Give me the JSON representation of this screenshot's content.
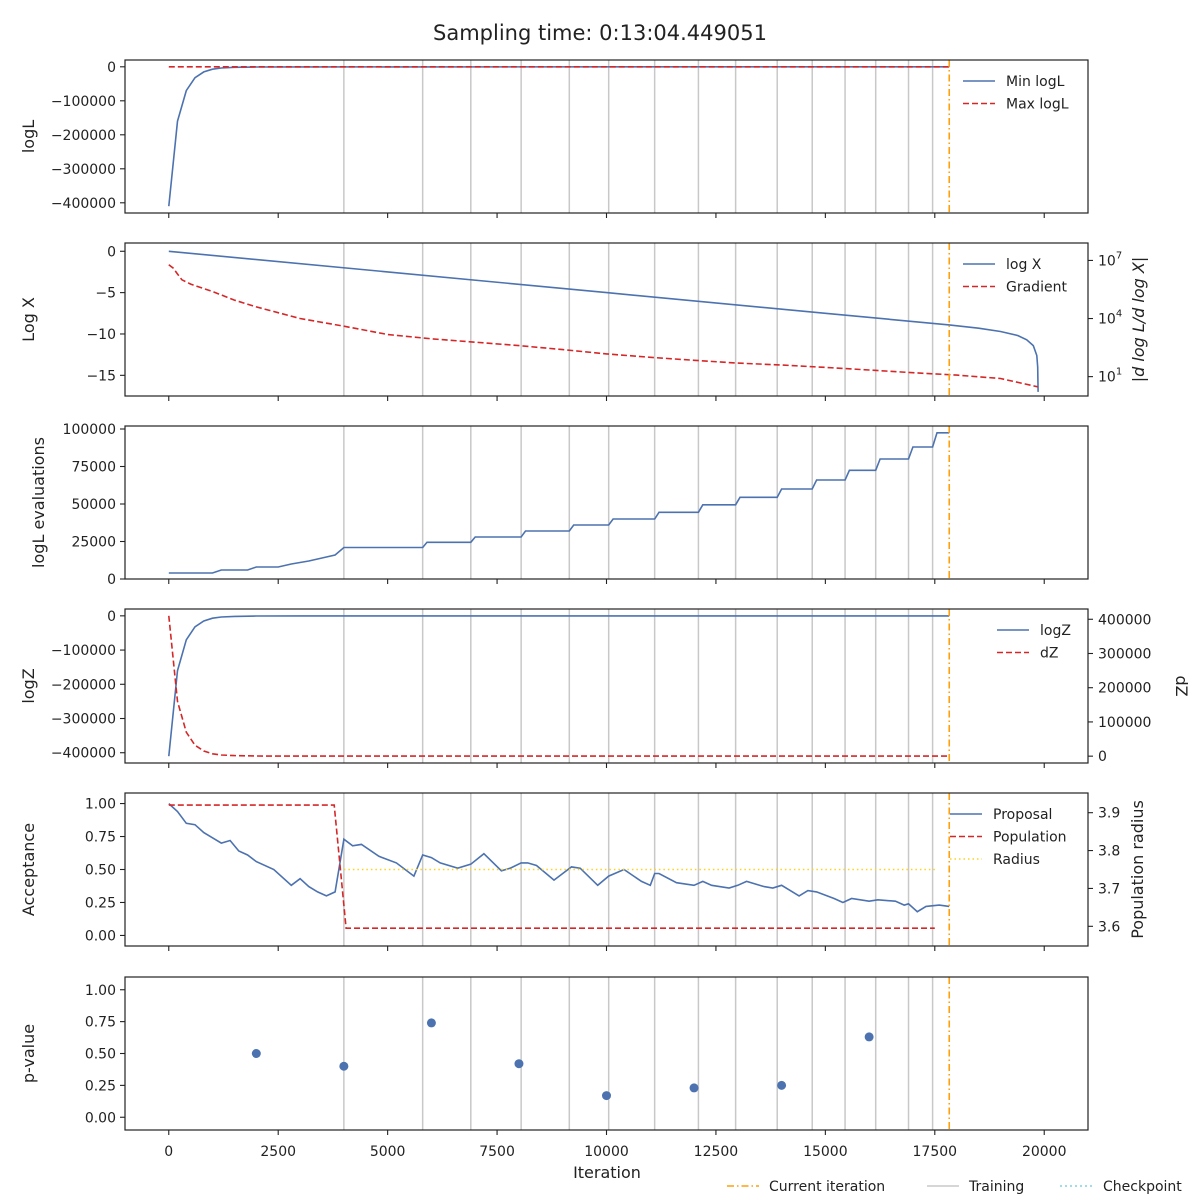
{
  "figure": {
    "title": "Sampling time: 0:13:04.449051",
    "xlabel": "Iteration",
    "x_ticks": [
      0,
      2500,
      5000,
      7500,
      10000,
      12500,
      15000,
      17500,
      20000
    ],
    "x_tick_labels": [
      "0",
      "2500",
      "5000",
      "7500",
      "10000",
      "12500",
      "15000",
      "17500",
      "20000"
    ],
    "xlim": [
      -1000,
      21000
    ],
    "colors": {
      "blue": "#4c72b0",
      "red": "#d62728",
      "orange": "#ff9f0a",
      "gold": "#ffd21f",
      "training": "#c8c8c8",
      "checkpoint": "#7fd3e3",
      "axis": "#222222"
    },
    "bottom_legend": [
      "Current iteration",
      "Training",
      "Checkpoint"
    ]
  },
  "chart_data": [
    {
      "type": "line",
      "ylabel": "logL",
      "ylim": [
        -430000,
        20000
      ],
      "y_ticks": [
        0,
        -100000,
        -200000,
        -300000,
        -400000
      ],
      "y_tick_labels": [
        "0",
        "−100000",
        "−200000",
        "−300000",
        "−400000"
      ],
      "current_iteration": 17830,
      "training_iterations": [
        4000,
        5800,
        6900,
        8050,
        9150,
        10050,
        11100,
        12100,
        12950,
        13900,
        14700,
        15450,
        16150,
        16900,
        17450
      ],
      "legend": [
        "Min logL",
        "Max logL"
      ],
      "series": [
        {
          "name": "Min logL",
          "style": "solid",
          "color": "#4c72b0",
          "x": [
            0,
            200,
            400,
            600,
            800,
            1000,
            1200,
            1500,
            2000,
            3000,
            17830
          ],
          "y": [
            -410000,
            -160000,
            -70000,
            -32000,
            -15000,
            -7000,
            -3500,
            -1500,
            -600,
            -200,
            -50
          ]
        },
        {
          "name": "Max logL",
          "style": "dashed",
          "color": "#d62728",
          "x": [
            0,
            17830
          ],
          "y": [
            0,
            0
          ]
        }
      ]
    },
    {
      "type": "line",
      "ylabel": "Log X",
      "y2label": "|d log L/d log X|",
      "ylim": [
        -17.5,
        1.0
      ],
      "y_ticks": [
        0,
        -5,
        -10,
        -15
      ],
      "y_tick_labels": [
        "0",
        "−5",
        "−10",
        "−15"
      ],
      "y2_scale": "log",
      "y2_ticks": [
        10,
        10000,
        10000000
      ],
      "y2_tick_labels": [
        "10",
        "10",
        "10"
      ],
      "y2_tick_exponents": [
        "1",
        "4",
        "7"
      ],
      "current_iteration": 17830,
      "training_iterations": [
        4000,
        5800,
        6900,
        8050,
        9150,
        10050,
        11100,
        12100,
        12950,
        13900,
        14700,
        15450,
        16150,
        16900,
        17450
      ],
      "legend": [
        "log X",
        "Gradient"
      ],
      "series": [
        {
          "name": "log X",
          "style": "solid",
          "color": "#4c72b0",
          "x": [
            0,
            5000,
            10000,
            15000,
            17830,
            18500,
            19000,
            19400,
            19600,
            19750,
            19830,
            19850,
            19860
          ],
          "y": [
            0,
            -2.5,
            -5.0,
            -7.5,
            -8.9,
            -9.3,
            -9.7,
            -10.2,
            -10.7,
            -11.4,
            -12.6,
            -14.0,
            -17.0
          ]
        },
        {
          "name": "Gradient",
          "style": "dashed",
          "color": "#d62728",
          "axis": "y2",
          "x": [
            0,
            100,
            200,
            300,
            500,
            800,
            1000,
            1500,
            2000,
            2500,
            3000,
            4000,
            5000,
            6000,
            7000,
            8000,
            9000,
            10000,
            11000,
            12000,
            13000,
            14000,
            15000,
            16000,
            17000,
            18000,
            19000,
            19850
          ],
          "y": [
            6000000,
            4000000,
            2000000,
            1000000,
            600000,
            350000,
            250000,
            90000,
            40000,
            20000,
            10000,
            4000,
            1500,
            900,
            600,
            400,
            250,
            150,
            100,
            70,
            50,
            40,
            30,
            22,
            16,
            12,
            8,
            3
          ]
        }
      ]
    },
    {
      "type": "line",
      "ylabel": "logL evaluations",
      "ylim": [
        0,
        102000
      ],
      "y_ticks": [
        0,
        25000,
        50000,
        75000,
        100000
      ],
      "y_tick_labels": [
        "0",
        "25000",
        "50000",
        "75000",
        "100000"
      ],
      "current_iteration": 17830,
      "training_iterations": [
        4000,
        5800,
        6900,
        8050,
        9150,
        10050,
        11100,
        12100,
        12950,
        13900,
        14700,
        15450,
        16150,
        16900,
        17450
      ],
      "series": [
        {
          "name": "",
          "style": "solid",
          "color": "#4c72b0",
          "x": [
            0,
            1000,
            1200,
            1800,
            2000,
            2500,
            2800,
            3200,
            3500,
            3800,
            4000,
            5800,
            5900,
            6900,
            7000,
            8050,
            8150,
            9150,
            9250,
            10050,
            10150,
            11100,
            11200,
            12100,
            12200,
            12950,
            13050,
            13900,
            14000,
            14700,
            14800,
            15450,
            15550,
            16150,
            16250,
            16900,
            17000,
            17450,
            17550,
            17830
          ],
          "y": [
            4000,
            4000,
            6000,
            6000,
            8000,
            8000,
            10000,
            12000,
            14000,
            16000,
            21000,
            21000,
            24500,
            24500,
            28000,
            28000,
            32000,
            32000,
            36000,
            36000,
            40000,
            40000,
            44500,
            44500,
            49500,
            49500,
            54500,
            54500,
            60000,
            60000,
            66000,
            66000,
            72500,
            72500,
            80000,
            80000,
            88000,
            88000,
            97500,
            97500
          ]
        }
      ]
    },
    {
      "type": "line",
      "ylabel": "logZ",
      "y2label": "dZ",
      "ylim": [
        -430000,
        20000
      ],
      "y_ticks": [
        0,
        -100000,
        -200000,
        -300000,
        -400000
      ],
      "y_tick_labels": [
        "0",
        "−100000",
        "−200000",
        "−300000",
        "−400000"
      ],
      "y2lim": [
        -20000,
        430000
      ],
      "y2_ticks": [
        0,
        100000,
        200000,
        300000,
        400000
      ],
      "y2_tick_labels": [
        "0",
        "100000",
        "200000",
        "300000",
        "400000"
      ],
      "current_iteration": 17830,
      "training_iterations": [
        4000,
        5800,
        6900,
        8050,
        9150,
        10050,
        11100,
        12100,
        12950,
        13900,
        14700,
        15450,
        16150,
        16900,
        17450
      ],
      "legend": [
        "logZ",
        "dZ"
      ],
      "series": [
        {
          "name": "logZ",
          "style": "solid",
          "color": "#4c72b0",
          "x": [
            0,
            200,
            400,
            600,
            800,
            1000,
            1200,
            1500,
            2000,
            3000,
            17830
          ],
          "y": [
            -410000,
            -160000,
            -70000,
            -32000,
            -15000,
            -7000,
            -3500,
            -1500,
            -600,
            -200,
            -50
          ]
        },
        {
          "name": "dZ",
          "style": "dashed",
          "color": "#d62728",
          "axis": "y2",
          "x": [
            0,
            200,
            400,
            600,
            800,
            1000,
            1200,
            1500,
            2000,
            3000,
            17830
          ],
          "y": [
            410000,
            160000,
            70000,
            32000,
            15000,
            7000,
            3500,
            1500,
            600,
            200,
            50
          ]
        }
      ]
    },
    {
      "type": "line",
      "ylabel": "Acceptance",
      "y2label": "Population radius",
      "ylim": [
        -0.08,
        1.08
      ],
      "y_ticks": [
        0.0,
        0.25,
        0.5,
        0.75,
        1.0
      ],
      "y_tick_labels": [
        "0.00",
        "0.25",
        "0.50",
        "0.75",
        "1.00"
      ],
      "y2lim": [
        3.548,
        3.952
      ],
      "y2_ticks": [
        3.6,
        3.7,
        3.8,
        3.9
      ],
      "y2_tick_labels": [
        "3.6",
        "3.7",
        "3.8",
        "3.9"
      ],
      "current_iteration": 17830,
      "training_iterations": [
        4000,
        5800,
        6900,
        8050,
        9150,
        10050,
        11100,
        12100,
        12950,
        13900,
        14700,
        15450,
        16150,
        16900,
        17450
      ],
      "legend": [
        "Proposal",
        "Population",
        "Radius"
      ],
      "series": [
        {
          "name": "Proposal",
          "style": "solid",
          "color": "#4c72b0",
          "x": [
            0,
            200,
            400,
            600,
            800,
            1000,
            1200,
            1400,
            1600,
            1800,
            2000,
            2400,
            2800,
            3000,
            3200,
            3400,
            3600,
            3800,
            4000,
            4200,
            4400,
            4800,
            5200,
            5600,
            5800,
            6000,
            6200,
            6600,
            6900,
            7200,
            7600,
            7800,
            8050,
            8200,
            8400,
            8800,
            9200,
            9400,
            9800,
            10050,
            10400,
            10800,
            11000,
            11100,
            11200,
            11600,
            12000,
            12200,
            12400,
            12800,
            13000,
            13200,
            13600,
            13800,
            14000,
            14400,
            14600,
            14800,
            15200,
            15400,
            15600,
            16000,
            16200,
            16600,
            16800,
            16900,
            17100,
            17300,
            17600,
            17830
          ],
          "y": [
            1.0,
            0.94,
            0.85,
            0.84,
            0.78,
            0.74,
            0.7,
            0.72,
            0.64,
            0.61,
            0.56,
            0.5,
            0.38,
            0.43,
            0.37,
            0.33,
            0.3,
            0.33,
            0.73,
            0.68,
            0.69,
            0.6,
            0.55,
            0.45,
            0.61,
            0.59,
            0.55,
            0.51,
            0.54,
            0.62,
            0.49,
            0.51,
            0.55,
            0.55,
            0.53,
            0.42,
            0.52,
            0.51,
            0.38,
            0.45,
            0.5,
            0.41,
            0.38,
            0.47,
            0.47,
            0.4,
            0.38,
            0.41,
            0.38,
            0.36,
            0.38,
            0.41,
            0.37,
            0.36,
            0.38,
            0.3,
            0.34,
            0.33,
            0.28,
            0.25,
            0.28,
            0.26,
            0.27,
            0.26,
            0.23,
            0.24,
            0.18,
            0.22,
            0.23,
            0.22
          ]
        },
        {
          "name": "Population",
          "style": "dashed",
          "color": "#d62728",
          "axis": "y2",
          "x": [
            0,
            3780,
            4050,
            17500
          ],
          "y": [
            3.92,
            3.92,
            3.595,
            3.595
          ]
        },
        {
          "name": "Radius",
          "style": "dotted",
          "color": "#ffd21f",
          "x": [
            4000,
            17500
          ],
          "y": [
            0.5,
            0.5
          ]
        }
      ]
    },
    {
      "type": "scatter",
      "ylabel": "p-value",
      "ylim": [
        -0.1,
        1.1
      ],
      "y_ticks": [
        0.0,
        0.25,
        0.5,
        0.75,
        1.0
      ],
      "y_tick_labels": [
        "0.00",
        "0.25",
        "0.50",
        "0.75",
        "1.00"
      ],
      "current_iteration": 17830,
      "training_iterations": [
        4000,
        5800,
        6900,
        8050,
        9150,
        10050,
        11100,
        12100,
        12950,
        13900,
        14700,
        15450,
        16150,
        16900,
        17450
      ],
      "series": [
        {
          "name": "",
          "color": "#4c72b0",
          "x": [
            2000,
            4000,
            6000,
            8000,
            10000,
            12000,
            14000,
            16000
          ],
          "y": [
            0.5,
            0.4,
            0.74,
            0.42,
            0.17,
            0.23,
            0.25,
            0.63
          ]
        }
      ]
    }
  ]
}
